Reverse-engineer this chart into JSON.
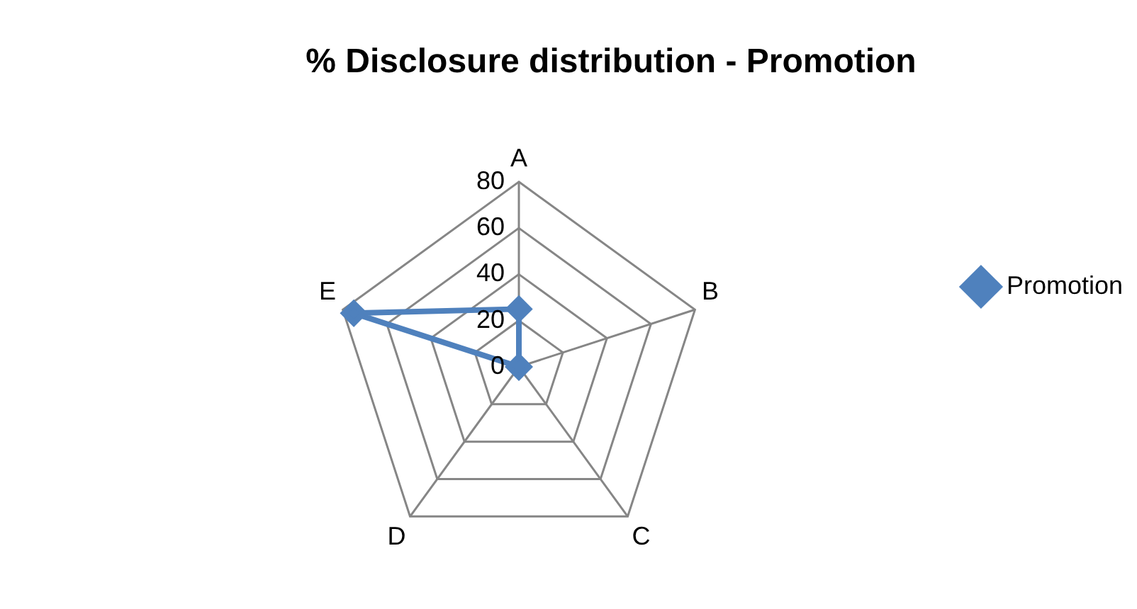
{
  "chart_data": {
    "type": "radar",
    "title": "% Disclosure distribution - Promotion",
    "categories": [
      "A",
      "B",
      "C",
      "D",
      "E"
    ],
    "series": [
      {
        "name": "Promotion",
        "color": "#4f81bd",
        "values": [
          25,
          0,
          0,
          0,
          75
        ]
      }
    ],
    "ylim": [
      0,
      80
    ],
    "yticks": [
      0,
      20,
      40,
      60,
      80
    ],
    "grid": true,
    "legend": "right",
    "marker": "diamond",
    "line_style": "solid"
  }
}
